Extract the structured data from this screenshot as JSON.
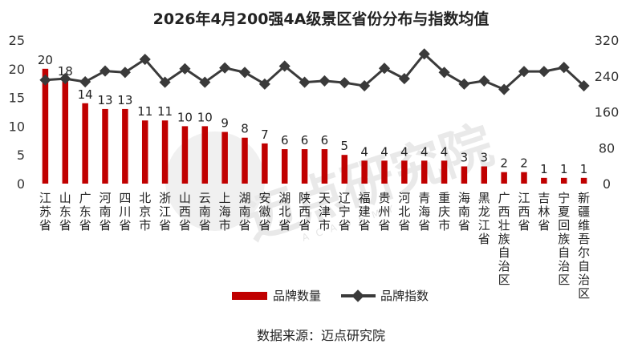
{
  "chart_data": {
    "type": "bar",
    "title": "2026年4月200强4A级景区省份分布与指数均值",
    "categories": [
      "江苏省",
      "山东省",
      "广东省",
      "河南省",
      "四川省",
      "北京市",
      "浙江省",
      "山西省",
      "云南省",
      "上海市",
      "湖南省",
      "安徽省",
      "湖北省",
      "陕西省",
      "天津市",
      "辽宁省",
      "福建省",
      "贵州省",
      "河北省",
      "青海省",
      "重庆市",
      "海南省",
      "黑龙江省",
      "广西壮族自治区",
      "江西省",
      "吉林省",
      "宁夏回族自治区",
      "新疆维吾尔自治区"
    ],
    "series": [
      {
        "name": "品牌数量",
        "type": "bar",
        "axis": "left",
        "color": "#c00000",
        "values": [
          20,
          18,
          14,
          13,
          13,
          11,
          11,
          10,
          10,
          9,
          8,
          7,
          6,
          6,
          6,
          5,
          4,
          4,
          4,
          4,
          4,
          3,
          3,
          2,
          2,
          1,
          1,
          1
        ]
      },
      {
        "name": "品牌指数",
        "type": "line",
        "axis": "right",
        "color": "#3a3a3a",
        "values": [
          231,
          234,
          227,
          251,
          248,
          277,
          226,
          256,
          226,
          258,
          248,
          222,
          262,
          226,
          229,
          225,
          218,
          257,
          234,
          289,
          248,
          222,
          229,
          210,
          250,
          250,
          259,
          218
        ]
      }
    ],
    "y_left": {
      "min": 0,
      "max": 25,
      "ticks": [
        0,
        5,
        10,
        15,
        20,
        25
      ]
    },
    "y_right": {
      "min": 0,
      "max": 320,
      "ticks": [
        0,
        80,
        160,
        240,
        320
      ]
    },
    "grid": false,
    "legend_position": "bottom",
    "data_labels": "bars"
  },
  "source": "数据来源：迈点研究院",
  "watermark": {
    "text": "迈点研究院",
    "sub": "ACADEMY"
  }
}
